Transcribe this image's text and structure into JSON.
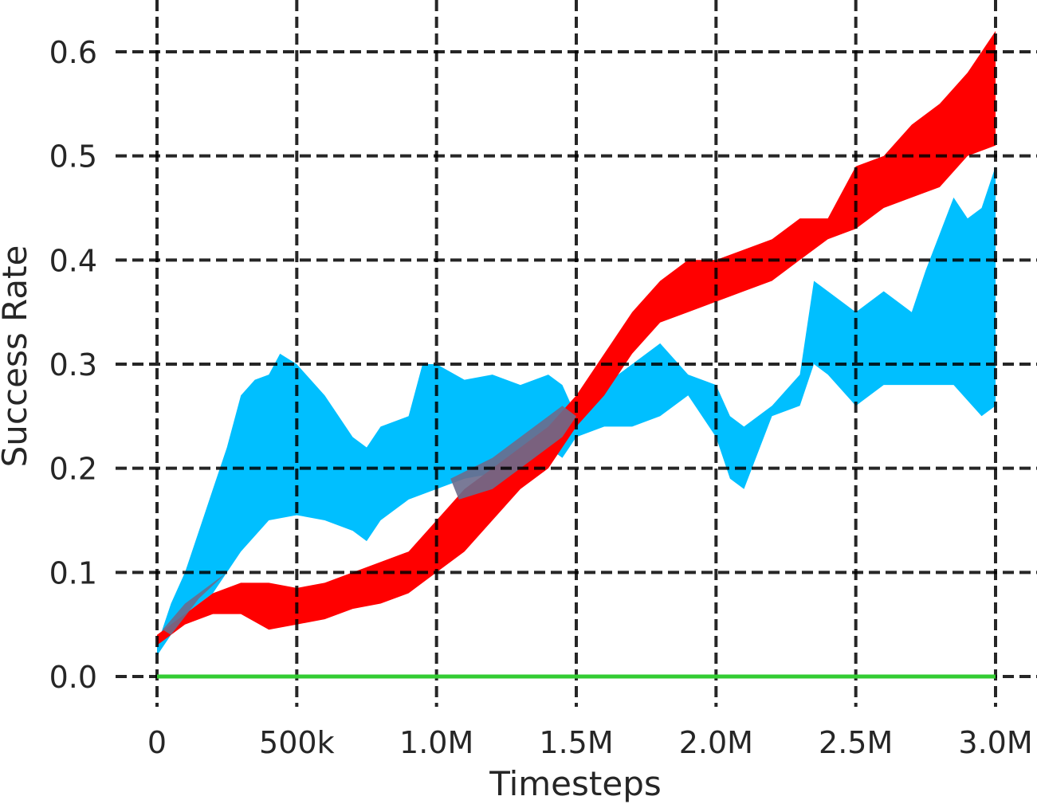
{
  "chart_data": {
    "type": "area",
    "title": "",
    "xlabel": "Timesteps",
    "ylabel": "Success Rate",
    "xlim": [
      0,
      3.0
    ],
    "ylim": [
      0.0,
      0.6
    ],
    "x_unit": "M",
    "xticks": [
      0,
      0.5,
      1.0,
      1.5,
      2.0,
      2.5,
      3.0
    ],
    "xtick_labels": [
      "0",
      "500k",
      "1.0M",
      "1.5M",
      "2.0M",
      "2.5M",
      "3.0M"
    ],
    "yticks": [
      0.0,
      0.1,
      0.2,
      0.3,
      0.4,
      0.5,
      0.6
    ],
    "ytick_labels": [
      "0.0",
      "0.1",
      "0.2",
      "0.3",
      "0.4",
      "0.5",
      "0.6"
    ],
    "grid": true,
    "grid_style": "dashed",
    "legend": null,
    "series": [
      {
        "name": "cyan-band",
        "color": "#00BFFF",
        "kind": "shaded-range",
        "upper": [
          [
            0,
            0.03
          ],
          [
            0.05,
            0.07
          ],
          [
            0.1,
            0.1
          ],
          [
            0.15,
            0.14
          ],
          [
            0.2,
            0.18
          ],
          [
            0.25,
            0.22
          ],
          [
            0.3,
            0.27
          ],
          [
            0.35,
            0.285
          ],
          [
            0.4,
            0.29
          ],
          [
            0.44,
            0.31
          ],
          [
            0.5,
            0.3
          ],
          [
            0.6,
            0.27
          ],
          [
            0.7,
            0.23
          ],
          [
            0.75,
            0.22
          ],
          [
            0.8,
            0.24
          ],
          [
            0.9,
            0.25
          ],
          [
            0.95,
            0.3
          ],
          [
            1.0,
            0.3
          ],
          [
            1.1,
            0.285
          ],
          [
            1.2,
            0.29
          ],
          [
            1.3,
            0.28
          ],
          [
            1.4,
            0.29
          ],
          [
            1.45,
            0.28
          ],
          [
            1.5,
            0.25
          ],
          [
            1.6,
            0.28
          ],
          [
            1.7,
            0.3
          ],
          [
            1.8,
            0.32
          ],
          [
            1.9,
            0.29
          ],
          [
            2.0,
            0.28
          ],
          [
            2.05,
            0.25
          ],
          [
            2.1,
            0.24
          ],
          [
            2.2,
            0.26
          ],
          [
            2.3,
            0.29
          ],
          [
            2.35,
            0.38
          ],
          [
            2.4,
            0.37
          ],
          [
            2.5,
            0.35
          ],
          [
            2.6,
            0.37
          ],
          [
            2.7,
            0.35
          ],
          [
            2.75,
            0.39
          ],
          [
            2.85,
            0.46
          ],
          [
            2.9,
            0.44
          ],
          [
            2.95,
            0.45
          ],
          [
            3.0,
            0.49
          ]
        ],
        "lower": [
          [
            0,
            0.02
          ],
          [
            0.05,
            0.04
          ],
          [
            0.1,
            0.06
          ],
          [
            0.2,
            0.08
          ],
          [
            0.3,
            0.12
          ],
          [
            0.4,
            0.15
          ],
          [
            0.5,
            0.155
          ],
          [
            0.6,
            0.15
          ],
          [
            0.7,
            0.14
          ],
          [
            0.75,
            0.13
          ],
          [
            0.8,
            0.15
          ],
          [
            0.9,
            0.17
          ],
          [
            1.0,
            0.18
          ],
          [
            1.1,
            0.19
          ],
          [
            1.3,
            0.2
          ],
          [
            1.4,
            0.22
          ],
          [
            1.45,
            0.21
          ],
          [
            1.5,
            0.23
          ],
          [
            1.6,
            0.24
          ],
          [
            1.7,
            0.24
          ],
          [
            1.8,
            0.25
          ],
          [
            1.9,
            0.27
          ],
          [
            2.0,
            0.23
          ],
          [
            2.05,
            0.19
          ],
          [
            2.1,
            0.18
          ],
          [
            2.2,
            0.25
          ],
          [
            2.3,
            0.26
          ],
          [
            2.35,
            0.3
          ],
          [
            2.4,
            0.29
          ],
          [
            2.5,
            0.26
          ],
          [
            2.6,
            0.28
          ],
          [
            2.7,
            0.28
          ],
          [
            2.75,
            0.28
          ],
          [
            2.85,
            0.28
          ],
          [
            2.95,
            0.25
          ],
          [
            3.0,
            0.26
          ]
        ]
      },
      {
        "name": "red-band",
        "color": "#FF0000",
        "kind": "shaded-range",
        "upper": [
          [
            0,
            0.04
          ],
          [
            0.1,
            0.06
          ],
          [
            0.2,
            0.08
          ],
          [
            0.3,
            0.09
          ],
          [
            0.4,
            0.09
          ],
          [
            0.5,
            0.085
          ],
          [
            0.6,
            0.09
          ],
          [
            0.8,
            0.11
          ],
          [
            0.9,
            0.12
          ],
          [
            1.0,
            0.15
          ],
          [
            1.1,
            0.18
          ],
          [
            1.2,
            0.2
          ],
          [
            1.3,
            0.22
          ],
          [
            1.4,
            0.24
          ],
          [
            1.5,
            0.27
          ],
          [
            1.6,
            0.31
          ],
          [
            1.7,
            0.35
          ],
          [
            1.8,
            0.38
          ],
          [
            1.9,
            0.4
          ],
          [
            2.0,
            0.4
          ],
          [
            2.1,
            0.41
          ],
          [
            2.2,
            0.42
          ],
          [
            2.3,
            0.44
          ],
          [
            2.4,
            0.44
          ],
          [
            2.5,
            0.49
          ],
          [
            2.6,
            0.5
          ],
          [
            2.7,
            0.53
          ],
          [
            2.8,
            0.55
          ],
          [
            2.9,
            0.58
          ],
          [
            3.0,
            0.62
          ]
        ],
        "lower": [
          [
            0,
            0.03
          ],
          [
            0.1,
            0.05
          ],
          [
            0.2,
            0.06
          ],
          [
            0.3,
            0.06
          ],
          [
            0.4,
            0.045
          ],
          [
            0.5,
            0.05
          ],
          [
            0.6,
            0.055
          ],
          [
            0.7,
            0.065
          ],
          [
            0.8,
            0.07
          ],
          [
            0.9,
            0.08
          ],
          [
            1.0,
            0.1
          ],
          [
            1.1,
            0.12
          ],
          [
            1.2,
            0.15
          ],
          [
            1.3,
            0.18
          ],
          [
            1.4,
            0.2
          ],
          [
            1.5,
            0.24
          ],
          [
            1.6,
            0.27
          ],
          [
            1.7,
            0.31
          ],
          [
            1.8,
            0.34
          ],
          [
            1.9,
            0.35
          ],
          [
            2.0,
            0.36
          ],
          [
            2.1,
            0.37
          ],
          [
            2.2,
            0.38
          ],
          [
            2.3,
            0.4
          ],
          [
            2.4,
            0.42
          ],
          [
            2.5,
            0.43
          ],
          [
            2.6,
            0.45
          ],
          [
            2.7,
            0.46
          ],
          [
            2.8,
            0.47
          ],
          [
            2.9,
            0.5
          ],
          [
            3.0,
            0.51
          ]
        ]
      },
      {
        "name": "green-line",
        "color": "#33CC33",
        "kind": "line",
        "x": [
          0,
          3.0
        ],
        "y": [
          0.0,
          0.0
        ]
      }
    ],
    "overlap_color": "#6B6B8C"
  }
}
